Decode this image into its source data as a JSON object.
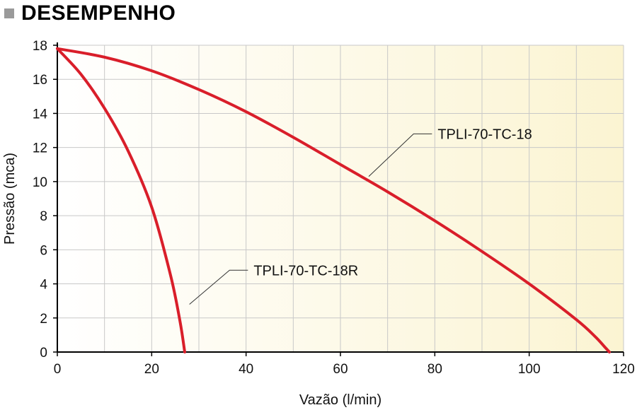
{
  "header": {
    "title": "DESEMPENHO"
  },
  "colors": {
    "curve": "#d91e2a",
    "grid": "#c8c8c8",
    "bg_left": "#ffffff",
    "bg_right": "#fbf4d2",
    "leader": "#333333"
  },
  "chart_data": {
    "type": "line",
    "title": "DESEMPENHO",
    "xlabel": "Vazão (l/min)",
    "ylabel": "Pressão (mca)",
    "xlim": [
      0,
      120
    ],
    "ylim": [
      0,
      18
    ],
    "xticks": [
      0,
      20,
      40,
      60,
      80,
      100,
      120
    ],
    "yticks": [
      0,
      2,
      4,
      6,
      8,
      10,
      12,
      14,
      16,
      18
    ],
    "grid": true,
    "series": [
      {
        "name": "TPLI-70-TC-18",
        "x": [
          0,
          10,
          20,
          30,
          40,
          50,
          60,
          70,
          80,
          90,
          100,
          110,
          114,
          116,
          117
        ],
        "y": [
          17.8,
          17.3,
          16.5,
          15.4,
          14.1,
          12.6,
          11.0,
          9.4,
          7.7,
          5.9,
          4.0,
          1.9,
          0.9,
          0.3,
          0
        ]
      },
      {
        "name": "TPLI-70-TC-18R",
        "x": [
          0,
          5,
          10,
          15,
          20,
          24,
          26,
          27
        ],
        "y": [
          17.8,
          16.3,
          14.3,
          11.8,
          8.5,
          4.5,
          1.8,
          0
        ]
      }
    ],
    "annotations": [
      {
        "text": "TPLI-70-TC-18",
        "series": "TPLI-70-TC-18",
        "point": [
          66,
          10.3
        ],
        "text_at": [
          80,
          12.8
        ]
      },
      {
        "text": "TPLI-70-TC-18R",
        "series": "TPLI-70-TC-18R",
        "point": [
          28,
          2.8
        ],
        "text_at": [
          41,
          4.8
        ]
      }
    ]
  }
}
